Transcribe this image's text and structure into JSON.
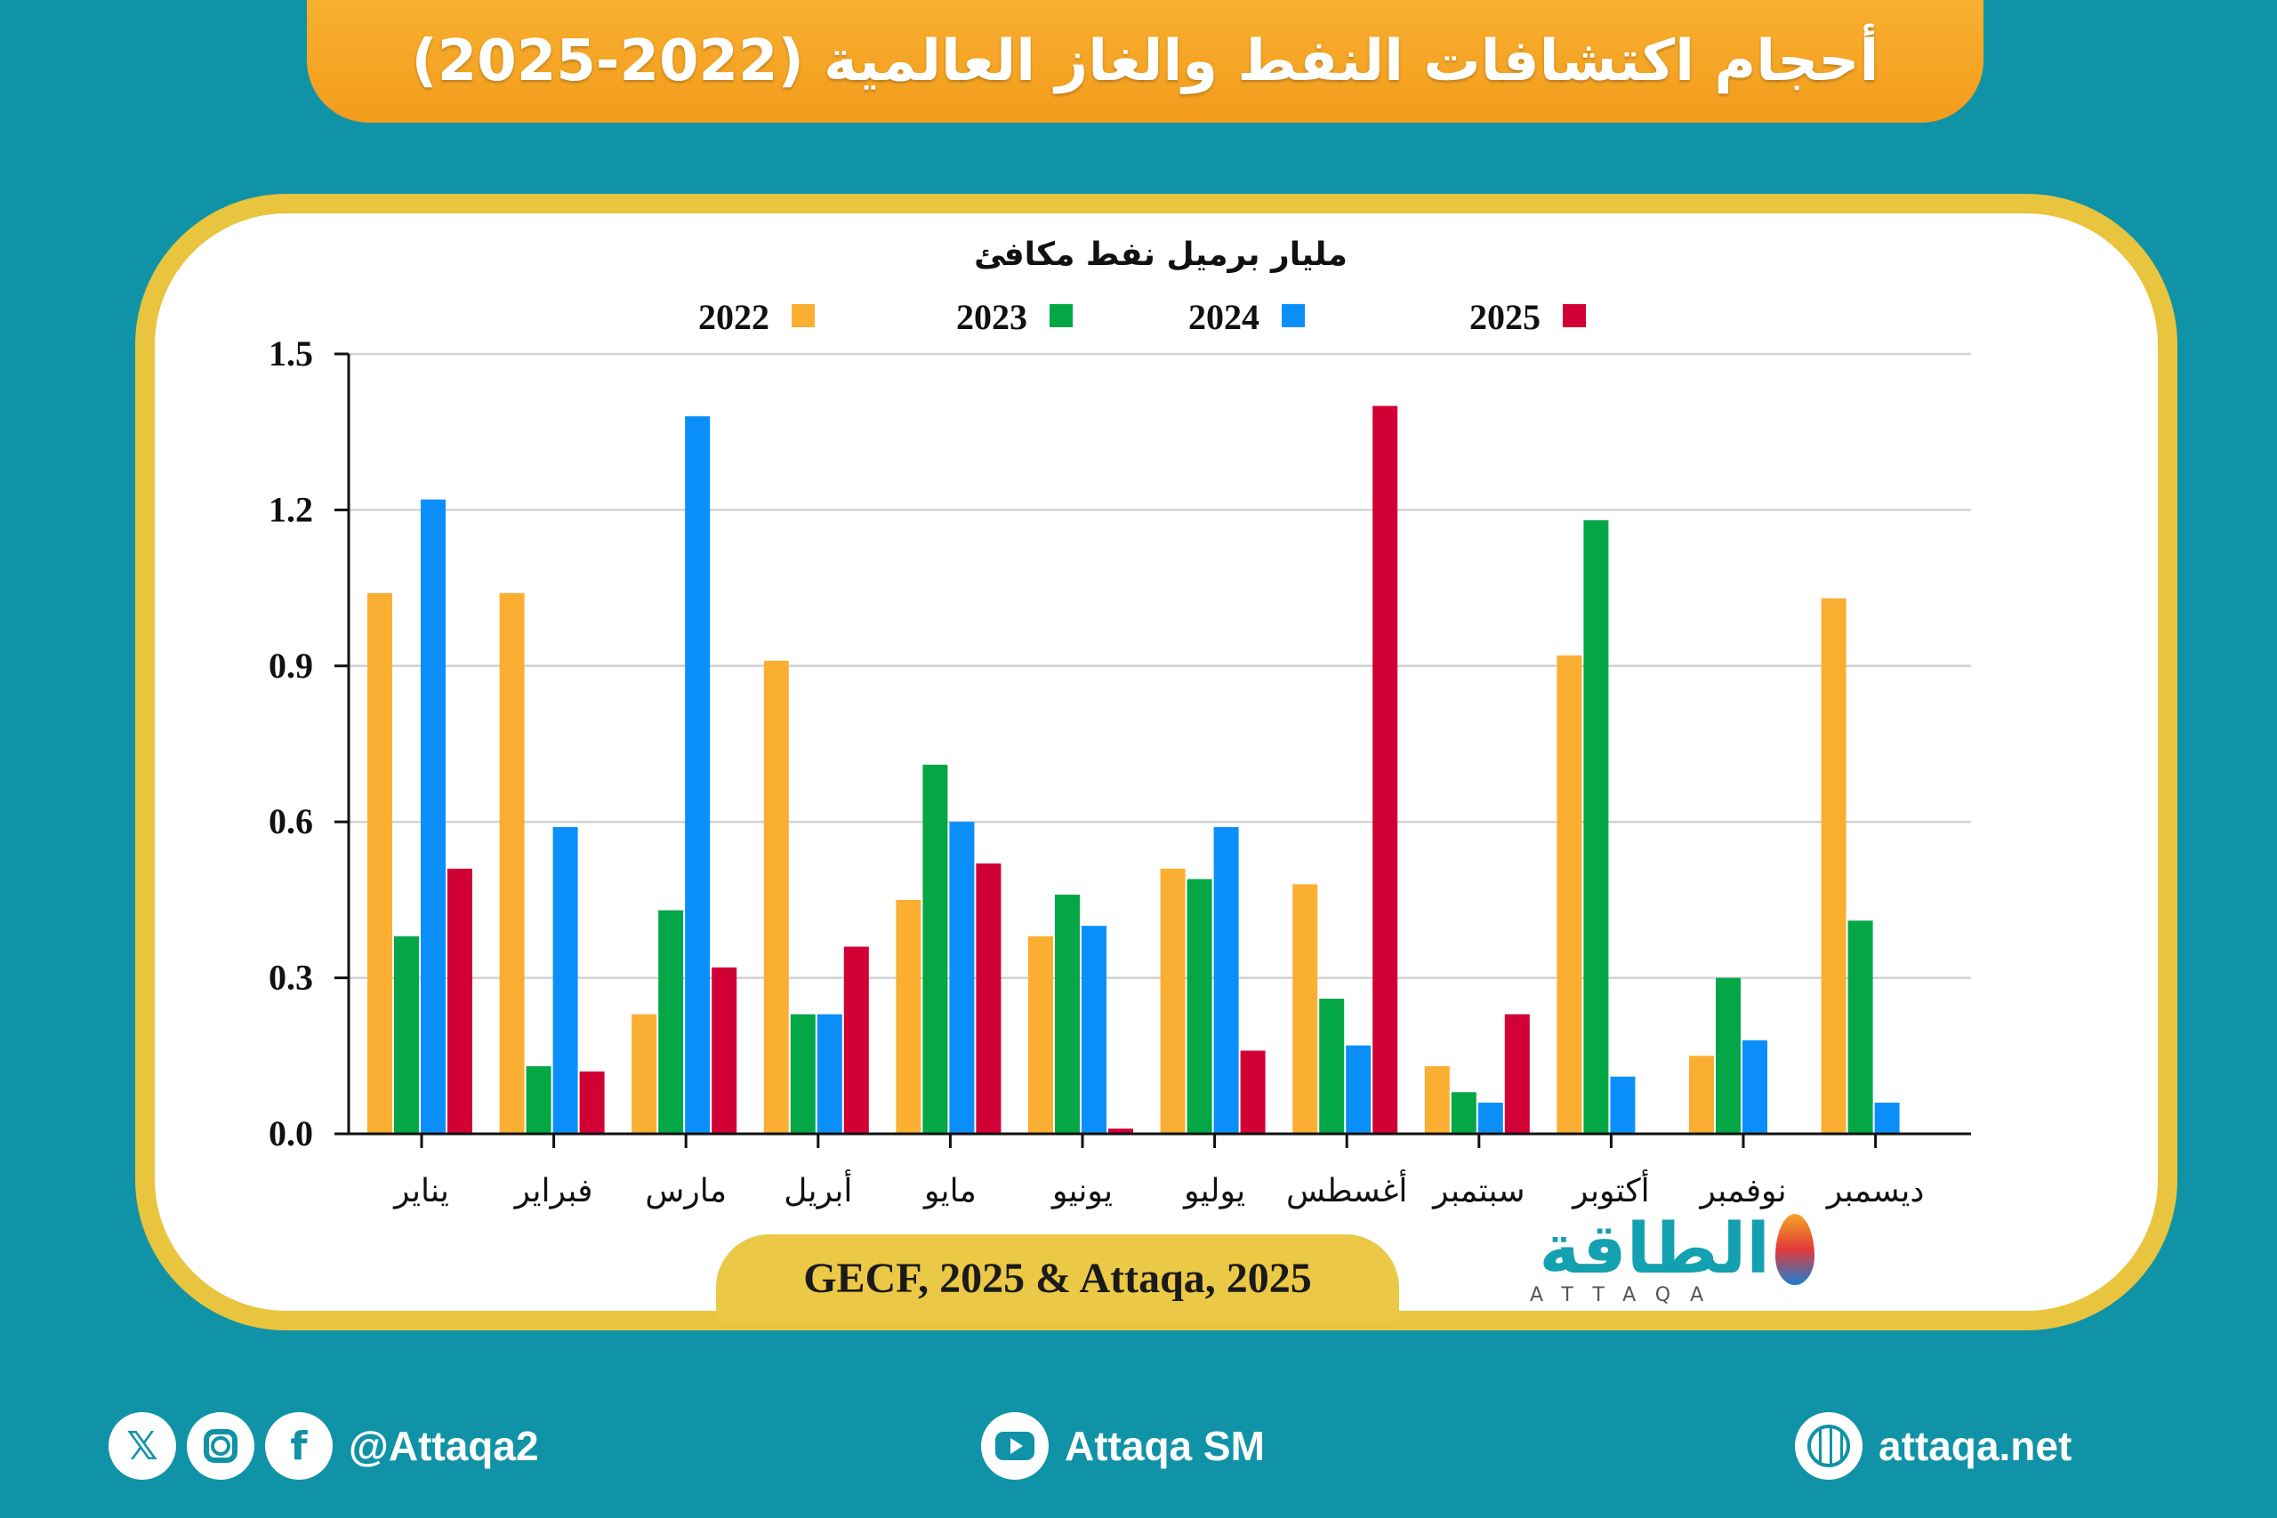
{
  "title": "أحجام اكتشافات النفط والغاز العالمية (2022-2025)",
  "source": "GECF, 2025 & Attaqa, 2025",
  "logo": {
    "arabic": "الطاقة",
    "latin": "ATTAQA"
  },
  "footer": {
    "social_handle": "@Attaqa2",
    "social_icons": [
      "x-icon",
      "instagram-icon",
      "facebook-icon"
    ],
    "youtube": "Attaqa SM",
    "website": "attaqa.net"
  },
  "colors": {
    "background": "#1093a6",
    "banner": "#f5a623",
    "card_border": "#e9c43f"
  },
  "chart_data": {
    "type": "bar",
    "title": "",
    "ylabel": "مليار برميل نفط مكافئ",
    "xlabel": "",
    "ylim": [
      0,
      1.5
    ],
    "yticks": [
      "0.0",
      "0.3",
      "0.6",
      "0.9",
      "1.2",
      "1.5"
    ],
    "grid": true,
    "legend_position": "top",
    "categories": [
      "يناير",
      "فبراير",
      "مارس",
      "أبريل",
      "مايو",
      "يونيو",
      "يوليو",
      "أغسطس",
      "سبتمبر",
      "أكتوبر",
      "نوفمبر",
      "ديسمبر"
    ],
    "series": [
      {
        "name": "2022",
        "color": "#fbaf32",
        "values": [
          1.04,
          1.04,
          0.23,
          0.91,
          0.45,
          0.38,
          0.51,
          0.48,
          0.13,
          0.92,
          0.15,
          1.03
        ]
      },
      {
        "name": "2023",
        "color": "#03a745",
        "values": [
          0.38,
          0.13,
          0.43,
          0.23,
          0.71,
          0.46,
          0.49,
          0.26,
          0.08,
          1.18,
          0.3,
          0.41
        ]
      },
      {
        "name": "2024",
        "color": "#0a8ffa",
        "values": [
          1.22,
          0.59,
          1.38,
          0.23,
          0.6,
          0.4,
          0.59,
          0.17,
          0.06,
          0.11,
          0.18,
          0.06
        ]
      },
      {
        "name": "2025",
        "color": "#d10035",
        "values": [
          0.51,
          0.12,
          0.32,
          0.36,
          0.52,
          0.01,
          0.16,
          1.4,
          0.23,
          null,
          null,
          null
        ]
      }
    ]
  }
}
